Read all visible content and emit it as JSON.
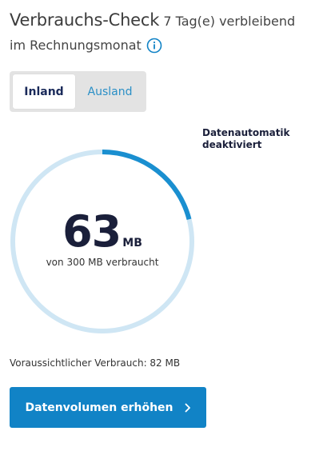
{
  "header": {
    "title": "Verbrauchs-Check",
    "remaining": "7 Tag(e) verbleibend",
    "period": "im Rechnungsmonat",
    "info_icon": "info-icon"
  },
  "tabs": [
    {
      "label": "Inland",
      "active": true
    },
    {
      "label": "Ausland",
      "active": false
    }
  ],
  "data_automatic": {
    "line1": "Datenautomatik",
    "line2": "deaktiviert"
  },
  "usage": {
    "used": "63",
    "unit": "MB",
    "caption": "von 300 MB verbraucht",
    "used_mb": 63,
    "total_mb": 300
  },
  "forecast": {
    "text": "Voraussichtlicher Verbrauch: 82 MB"
  },
  "cta": {
    "label": "Datenvolumen erhöhen",
    "icon": "chevron-right-icon"
  },
  "colors": {
    "accent": "#1183c6",
    "gauge_track": "#cfe6f4",
    "gauge_fill": "#1a8fd0",
    "dark_text": "#1a1f3a",
    "tab_link": "#2a8fc6"
  }
}
